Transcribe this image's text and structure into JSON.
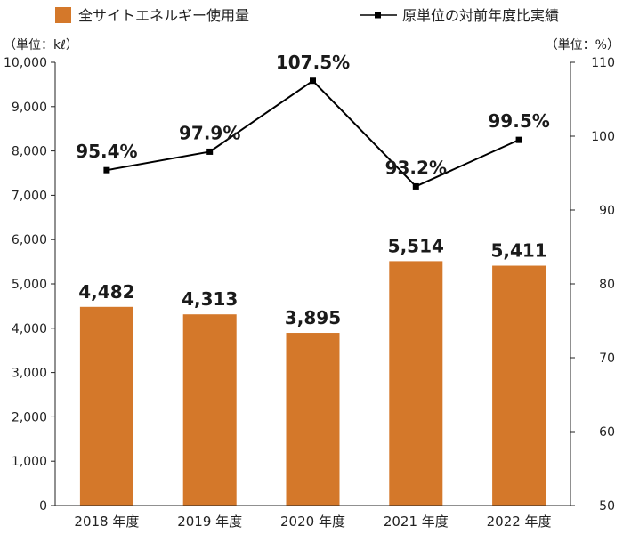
{
  "chart_data": {
    "type": "bar+line",
    "categories": [
      "2018 年度",
      "2019 年度",
      "2020 年度",
      "2021 年度",
      "2022 年度"
    ],
    "series": [
      {
        "name": "全サイトエネルギー使用量",
        "type": "bar",
        "axis": "left",
        "values": [
          4482,
          4313,
          3895,
          5514,
          5411
        ],
        "labels": [
          "4,482",
          "4,313",
          "3,895",
          "5,514",
          "5,411"
        ],
        "color": "#d4782a"
      },
      {
        "name": "原単位の対前年度比実績",
        "type": "line",
        "axis": "right",
        "values": [
          95.4,
          97.9,
          107.5,
          93.2,
          99.5
        ],
        "labels": [
          "95.4%",
          "97.9%",
          "107.5%",
          "93.2%",
          "99.5%"
        ],
        "color": "#000000"
      }
    ],
    "y_left": {
      "unit_label": "（単位：kℓ）",
      "range": [
        0,
        10000
      ],
      "ticks": [
        0,
        1000,
        2000,
        3000,
        4000,
        5000,
        6000,
        7000,
        8000,
        9000,
        10000
      ],
      "tick_labels": [
        "0",
        "1,000",
        "2,000",
        "3,000",
        "4,000",
        "5,000",
        "6,000",
        "7,000",
        "8,000",
        "9,000",
        "10,000"
      ]
    },
    "y_right": {
      "unit_label": "（単位：%）",
      "range": [
        50,
        110
      ],
      "ticks": [
        50,
        60,
        70,
        80,
        90,
        100,
        110
      ],
      "tick_labels": [
        "50",
        "60",
        "70",
        "80",
        "90",
        "100",
        "110"
      ]
    },
    "grid": false,
    "legend_placement": "top"
  }
}
